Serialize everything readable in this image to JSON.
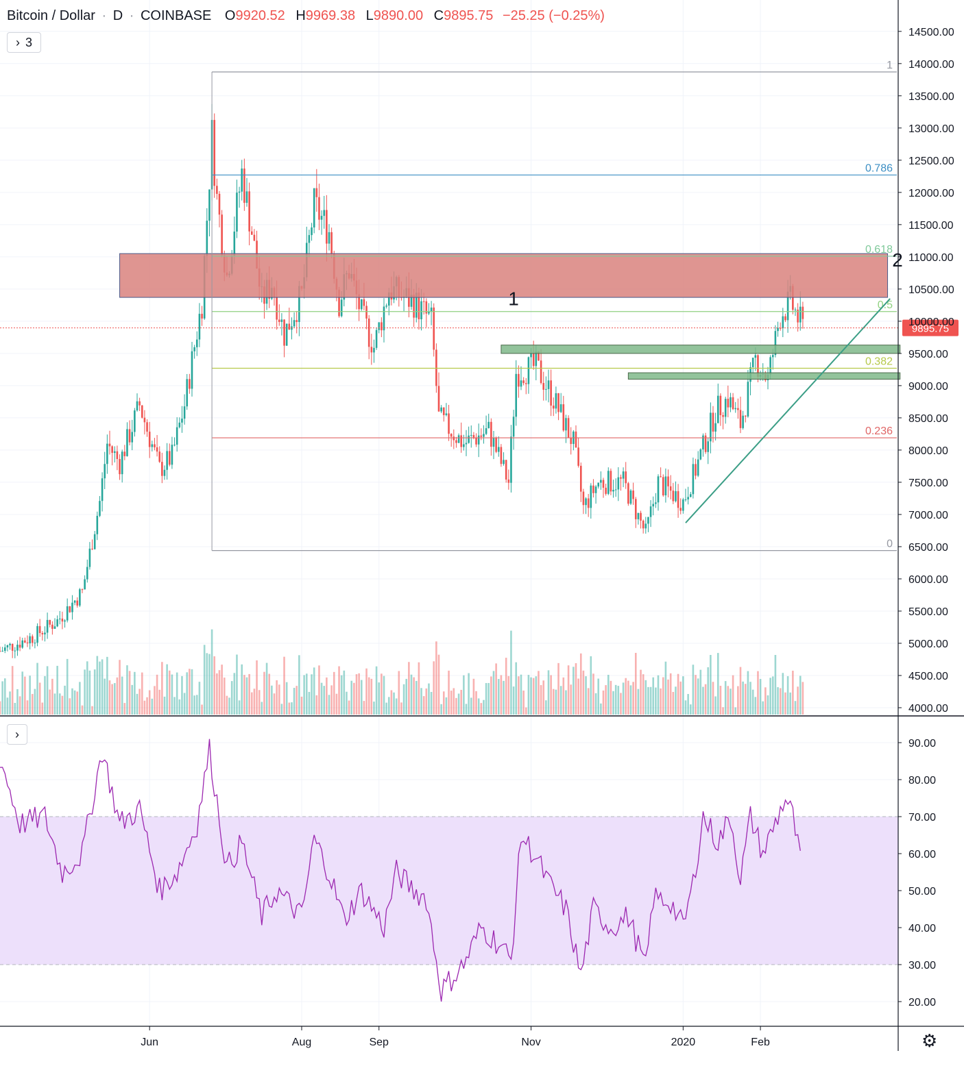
{
  "header": {
    "symbol": "Bitcoin / Dollar",
    "sep1": "·",
    "interval": "D",
    "sep2": "·",
    "exchange": "COINBASE",
    "o_label": "O",
    "o_value": "9920.52",
    "h_label": "H",
    "h_value": "9969.38",
    "l_label": "L",
    "l_value": "9890.00",
    "c_label": "C",
    "c_value": "9895.75",
    "change": "−25.25 (−0.25%)"
  },
  "indicators_toggle": {
    "chevron": "›",
    "count": "3"
  },
  "rsi_toggle": {
    "chevron": "›"
  },
  "settings_icon": "gear-icon",
  "colors": {
    "up": "#26a69a",
    "down": "#ef5350",
    "rsi": "#9c27b0",
    "rsi_band": "#ede0fb",
    "resistance_zone": "#d9837e",
    "support_zone": "#7fb88a",
    "trendline": "#3b9e86",
    "price_tag": "#ef5350"
  },
  "chart_data": [
    {
      "type": "candlestick",
      "title": "Bitcoin / Dollar · D · COINBASE",
      "y_axis": {
        "min": 4000,
        "max": 14500,
        "ticks": [
          "4000.00",
          "4500.00",
          "5000.00",
          "5500.00",
          "6000.00",
          "6500.00",
          "7000.00",
          "7500.00",
          "8000.00",
          "8500.00",
          "9000.00",
          "9500.00",
          "10000.00",
          "10500.00",
          "11000.00",
          "11500.00",
          "12000.00",
          "12500.00",
          "13000.00",
          "13500.00",
          "14000.00",
          "14500.00"
        ]
      },
      "x_axis": {
        "labels": [
          "Jun",
          "Aug",
          "Sep",
          "Nov",
          "2020",
          "Feb"
        ],
        "label_dates": [
          "2019-06-01",
          "2019-08-01",
          "2019-09-01",
          "2019-11-01",
          "2020-01-01",
          "2020-02-01"
        ],
        "start": "2019-04-02",
        "end": "2020-03-30"
      },
      "last_price": "9895.75",
      "approx_close_path": [
        [
          "2019-04-02",
          4880
        ],
        [
          "2019-04-15",
          5100
        ],
        [
          "2019-04-25",
          5350
        ],
        [
          "2019-05-05",
          5800
        ],
        [
          "2019-05-12",
          7200
        ],
        [
          "2019-05-15",
          8100
        ],
        [
          "2019-05-20",
          7800
        ],
        [
          "2019-05-28",
          8700
        ],
        [
          "2019-06-05",
          7700
        ],
        [
          "2019-06-10",
          7900
        ],
        [
          "2019-06-15",
          8700
        ],
        [
          "2019-06-22",
          10300
        ],
        [
          "2019-06-26",
          12900
        ],
        [
          "2019-06-28",
          11900
        ],
        [
          "2019-07-02",
          10700
        ],
        [
          "2019-07-08",
          12300
        ],
        [
          "2019-07-12",
          11400
        ],
        [
          "2019-07-16",
          10300
        ],
        [
          "2019-07-20",
          10600
        ],
        [
          "2019-07-25",
          9800
        ],
        [
          "2019-08-01",
          10400
        ],
        [
          "2019-08-06",
          11800
        ],
        [
          "2019-08-12",
          11400
        ],
        [
          "2019-08-16",
          10300
        ],
        [
          "2019-08-20",
          10800
        ],
        [
          "2019-08-25",
          10100
        ],
        [
          "2019-08-30",
          9600
        ],
        [
          "2019-09-05",
          10500
        ],
        [
          "2019-09-15",
          10300
        ],
        [
          "2019-09-22",
          10000
        ],
        [
          "2019-09-25",
          8500
        ],
        [
          "2019-10-05",
          8100
        ],
        [
          "2019-10-15",
          8300
        ],
        [
          "2019-10-23",
          7500
        ],
        [
          "2019-10-26",
          9200
        ],
        [
          "2019-11-03",
          9300
        ],
        [
          "2019-11-10",
          8800
        ],
        [
          "2019-11-18",
          8100
        ],
        [
          "2019-11-22",
          7100
        ],
        [
          "2019-11-28",
          7500
        ],
        [
          "2019-12-08",
          7500
        ],
        [
          "2019-12-17",
          6700
        ],
        [
          "2019-12-22",
          7500
        ],
        [
          "2020-01-01",
          7200
        ],
        [
          "2020-01-06",
          7700
        ],
        [
          "2020-01-14",
          8600
        ],
        [
          "2020-01-19",
          8800
        ],
        [
          "2020-01-24",
          8400
        ],
        [
          "2020-01-30",
          9400
        ],
        [
          "2020-02-04",
          9100
        ],
        [
          "2020-02-09",
          10100
        ],
        [
          "2020-02-13",
          10300
        ],
        [
          "2020-02-18",
          9900
        ]
      ],
      "fibonacci": [
        {
          "level": "1",
          "price": 13870,
          "color": "#9598a1"
        },
        {
          "level": "0.786",
          "price": 12270,
          "color": "#3d8fc4"
        },
        {
          "level": "0.618",
          "price": 11010,
          "color": "#7fc99a"
        },
        {
          "level": "0.5",
          "price": 10150,
          "color": "#8fd17f"
        },
        {
          "level": "0.382",
          "price": 9270,
          "color": "#b6c94a"
        },
        {
          "level": "0.236",
          "price": 8190,
          "color": "#e06666"
        },
        {
          "level": "0",
          "price": 6440,
          "color": "#9598a1"
        }
      ],
      "annotations": [
        {
          "label": "1",
          "date": "2019-10-25",
          "price": 10250
        },
        {
          "label": "2",
          "date": "2020-03-27",
          "price": 10850
        }
      ],
      "zones": [
        {
          "name": "resistance",
          "from": "2019-05-20",
          "to": "2020-03-23",
          "low": 10370,
          "high": 11050
        },
        {
          "name": "support-upper",
          "from": "2019-10-20",
          "to": "2020-03-28",
          "low": 9500,
          "high": 9630
        },
        {
          "name": "support-lower",
          "from": "2019-12-10",
          "to": "2020-03-28",
          "low": 9100,
          "high": 9200
        }
      ],
      "trendline": {
        "from": [
          "2020-01-02",
          6870
        ],
        "to": [
          "2020-03-24",
          10350
        ]
      }
    },
    {
      "type": "line",
      "title": "",
      "y_axis": {
        "min": 15,
        "max": 95,
        "ticks": [
          "20.00",
          "30.00",
          "40.00",
          "50.00",
          "60.00",
          "70.00",
          "80.00",
          "90.00"
        ]
      },
      "band": [
        30,
        70
      ],
      "approx_path": [
        [
          "2019-04-02",
          86
        ],
        [
          "2019-04-10",
          68
        ],
        [
          "2019-04-20",
          70
        ],
        [
          "2019-04-27",
          55
        ],
        [
          "2019-05-05",
          60
        ],
        [
          "2019-05-13",
          88
        ],
        [
          "2019-05-20",
          68
        ],
        [
          "2019-05-28",
          72
        ],
        [
          "2019-06-05",
          50
        ],
        [
          "2019-06-12",
          55
        ],
        [
          "2019-06-20",
          68
        ],
        [
          "2019-06-25",
          88
        ],
        [
          "2019-07-02",
          56
        ],
        [
          "2019-07-08",
          63
        ],
        [
          "2019-07-16",
          43
        ],
        [
          "2019-07-22",
          50
        ],
        [
          "2019-08-01",
          43
        ],
        [
          "2019-08-06",
          64
        ],
        [
          "2019-08-12",
          55
        ],
        [
          "2019-08-18",
          42
        ],
        [
          "2019-08-25",
          50
        ],
        [
          "2019-09-03",
          40
        ],
        [
          "2019-09-08",
          55
        ],
        [
          "2019-09-15",
          50
        ],
        [
          "2019-09-20",
          48
        ],
        [
          "2019-09-26",
          23
        ],
        [
          "2019-10-05",
          30
        ],
        [
          "2019-10-12",
          40
        ],
        [
          "2019-10-20",
          35
        ],
        [
          "2019-10-24",
          31
        ],
        [
          "2019-10-28",
          65
        ],
        [
          "2019-11-03",
          59
        ],
        [
          "2019-11-08",
          52
        ],
        [
          "2019-11-15",
          45
        ],
        [
          "2019-11-21",
          27
        ],
        [
          "2019-11-26",
          45
        ],
        [
          "2019-12-03",
          40
        ],
        [
          "2019-12-10",
          43
        ],
        [
          "2019-12-17",
          29
        ],
        [
          "2019-12-20",
          48
        ],
        [
          "2019-12-27",
          47
        ],
        [
          "2020-01-01",
          40
        ],
        [
          "2020-01-05",
          52
        ],
        [
          "2020-01-09",
          70
        ],
        [
          "2020-01-15",
          63
        ],
        [
          "2020-01-20",
          70
        ],
        [
          "2020-01-24",
          53
        ],
        [
          "2020-01-28",
          70
        ],
        [
          "2020-02-02",
          60
        ],
        [
          "2020-02-08",
          70
        ],
        [
          "2020-02-11",
          75
        ],
        [
          "2020-02-14",
          70
        ],
        [
          "2020-02-17",
          58
        ]
      ]
    }
  ]
}
